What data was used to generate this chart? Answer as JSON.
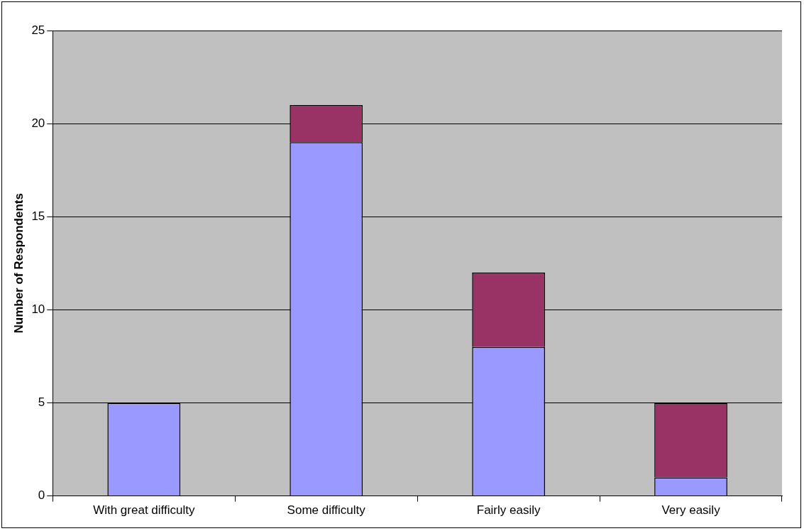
{
  "chart_data": {
    "type": "bar",
    "stacked": true,
    "ylabel": "Number of Respondents",
    "categories": [
      "With great difficulty",
      "Some difficulty",
      "Fairly easily",
      "Very easily"
    ],
    "series": [
      {
        "color": "#9999ff",
        "values": [
          5,
          19,
          8,
          1
        ]
      },
      {
        "color": "#993366",
        "values": [
          0,
          2,
          4,
          4
        ]
      }
    ],
    "ylim": [
      0,
      25
    ],
    "yticks": [
      0,
      5,
      10,
      15,
      20,
      25
    ],
    "grid": "y",
    "legend": false
  }
}
